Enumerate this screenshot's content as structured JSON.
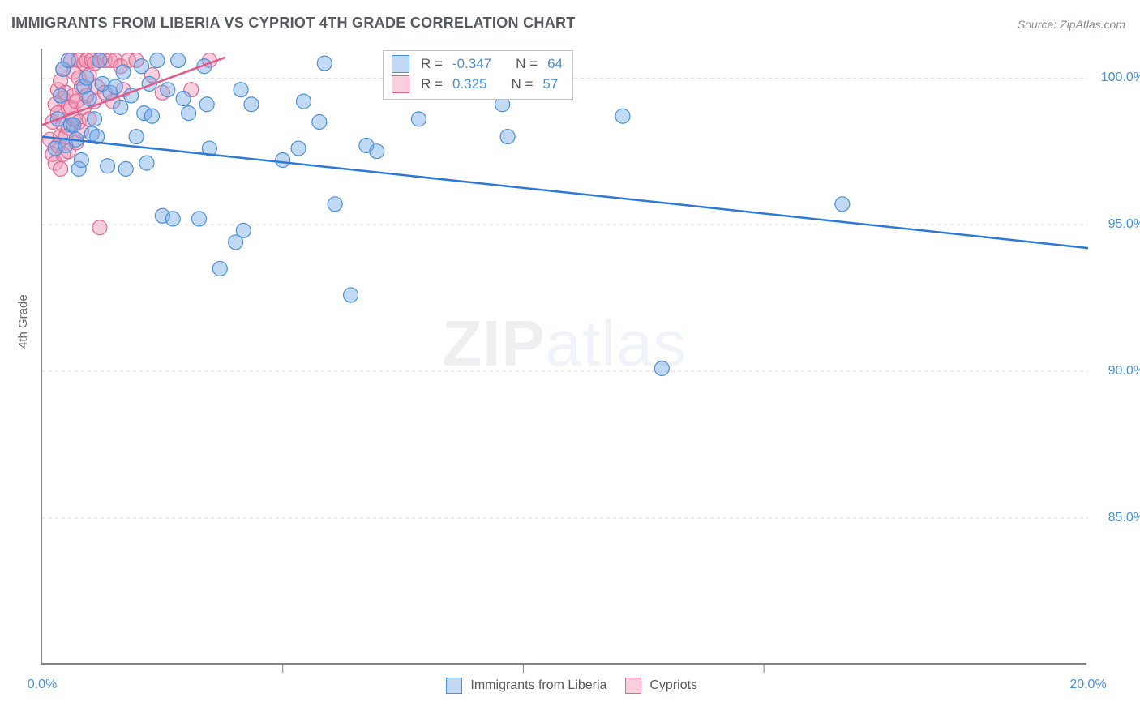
{
  "title": "IMMIGRANTS FROM LIBERIA VS CYPRIOT 4TH GRADE CORRELATION CHART",
  "source": "Source: ZipAtlas.com",
  "ylabel": "4th Grade",
  "watermark_left": "ZIP",
  "watermark_right": "atlas",
  "chart": {
    "type": "scatter",
    "xlim": [
      0,
      20
    ],
    "ylim": [
      80,
      101
    ],
    "yticks": [
      85,
      90,
      95,
      100
    ],
    "ytick_labels": [
      "85.0%",
      "90.0%",
      "95.0%",
      "100.0%"
    ],
    "xticks": [
      0,
      20
    ],
    "xtick_labels": [
      "0.0%",
      "20.0%"
    ],
    "xtick_minor": [
      4.6,
      9.2,
      13.8
    ],
    "grid_color": "#d8dbe0",
    "background_color": "#ffffff",
    "marker_radius": 9,
    "series": [
      {
        "name": "Immigrants from Liberia",
        "color_fill": "rgba(120,170,230,0.45)",
        "color_stroke": "#4a90d9",
        "R": -0.347,
        "N": 64,
        "trendline": {
          "x1": 0,
          "y1": 98.0,
          "x2": 20,
          "y2": 94.2
        },
        "points": [
          [
            0.25,
            97.6
          ],
          [
            0.3,
            98.6
          ],
          [
            0.35,
            99.4
          ],
          [
            0.4,
            100.3
          ],
          [
            0.45,
            97.7
          ],
          [
            0.5,
            100.6
          ],
          [
            0.55,
            98.4
          ],
          [
            0.6,
            98.4
          ],
          [
            0.65,
            97.9
          ],
          [
            0.7,
            96.9
          ],
          [
            0.75,
            97.2
          ],
          [
            0.8,
            99.7
          ],
          [
            0.85,
            100.0
          ],
          [
            0.9,
            99.3
          ],
          [
            0.95,
            98.1
          ],
          [
            1.0,
            98.6
          ],
          [
            1.05,
            98.0
          ],
          [
            1.1,
            100.6
          ],
          [
            1.15,
            99.8
          ],
          [
            1.25,
            97.0
          ],
          [
            1.3,
            99.5
          ],
          [
            1.4,
            99.7
          ],
          [
            1.5,
            99.0
          ],
          [
            1.55,
            100.2
          ],
          [
            1.6,
            96.9
          ],
          [
            1.7,
            99.4
          ],
          [
            1.8,
            98.0
          ],
          [
            1.9,
            100.4
          ],
          [
            1.95,
            98.8
          ],
          [
            2.0,
            97.1
          ],
          [
            2.05,
            99.8
          ],
          [
            2.1,
            98.7
          ],
          [
            2.2,
            100.6
          ],
          [
            2.3,
            95.3
          ],
          [
            2.4,
            99.6
          ],
          [
            2.5,
            95.2
          ],
          [
            2.6,
            100.6
          ],
          [
            2.7,
            99.3
          ],
          [
            2.8,
            98.8
          ],
          [
            3.0,
            95.2
          ],
          [
            3.1,
            100.4
          ],
          [
            3.15,
            99.1
          ],
          [
            3.2,
            97.6
          ],
          [
            3.4,
            93.5
          ],
          [
            3.7,
            94.4
          ],
          [
            3.8,
            99.6
          ],
          [
            3.85,
            94.8
          ],
          [
            4.0,
            99.1
          ],
          [
            4.6,
            97.2
          ],
          [
            4.9,
            97.6
          ],
          [
            5.0,
            99.2
          ],
          [
            5.3,
            98.5
          ],
          [
            5.4,
            100.5
          ],
          [
            5.6,
            95.7
          ],
          [
            5.9,
            92.6
          ],
          [
            6.2,
            97.7
          ],
          [
            6.4,
            97.5
          ],
          [
            7.2,
            98.6
          ],
          [
            7.55,
            100.6
          ],
          [
            8.8,
            99.1
          ],
          [
            8.9,
            98.0
          ],
          [
            11.1,
            98.7
          ],
          [
            11.85,
            90.1
          ],
          [
            15.3,
            95.7
          ]
        ]
      },
      {
        "name": "Cypriots",
        "color_fill": "rgba(240,150,180,0.45)",
        "color_stroke": "#e06692",
        "R": 0.325,
        "N": 57,
        "trendline": {
          "x1": 0,
          "y1": 98.4,
          "x2": 3.5,
          "y2": 100.7
        },
        "points": [
          [
            0.15,
            97.9
          ],
          [
            0.2,
            97.4
          ],
          [
            0.2,
            98.5
          ],
          [
            0.25,
            97.1
          ],
          [
            0.25,
            99.1
          ],
          [
            0.3,
            97.7
          ],
          [
            0.3,
            98.8
          ],
          [
            0.3,
            99.6
          ],
          [
            0.35,
            96.9
          ],
          [
            0.35,
            98.0
          ],
          [
            0.35,
            99.9
          ],
          [
            0.4,
            97.4
          ],
          [
            0.4,
            98.4
          ],
          [
            0.4,
            99.3
          ],
          [
            0.4,
            100.3
          ],
          [
            0.45,
            98.0
          ],
          [
            0.45,
            99.5
          ],
          [
            0.5,
            97.5
          ],
          [
            0.5,
            98.3
          ],
          [
            0.5,
            99.0
          ],
          [
            0.55,
            100.6
          ],
          [
            0.55,
            99.0
          ],
          [
            0.6,
            98.6
          ],
          [
            0.6,
            100.2
          ],
          [
            0.6,
            99.4
          ],
          [
            0.65,
            97.8
          ],
          [
            0.65,
            99.2
          ],
          [
            0.7,
            98.5
          ],
          [
            0.7,
            100.0
          ],
          [
            0.7,
            100.6
          ],
          [
            0.75,
            98.2
          ],
          [
            0.75,
            99.7
          ],
          [
            0.8,
            99.0
          ],
          [
            0.8,
            100.5
          ],
          [
            0.85,
            99.4
          ],
          [
            0.85,
            100.6
          ],
          [
            0.9,
            98.6
          ],
          [
            0.9,
            100.1
          ],
          [
            0.95,
            100.6
          ],
          [
            1.0,
            99.2
          ],
          [
            1.0,
            100.5
          ],
          [
            1.05,
            99.7
          ],
          [
            1.1,
            100.6
          ],
          [
            1.1,
            94.9
          ],
          [
            1.2,
            100.6
          ],
          [
            1.2,
            99.5
          ],
          [
            1.3,
            100.6
          ],
          [
            1.35,
            99.2
          ],
          [
            1.4,
            100.6
          ],
          [
            1.5,
            100.4
          ],
          [
            1.55,
            99.6
          ],
          [
            1.65,
            100.6
          ],
          [
            1.8,
            100.6
          ],
          [
            2.1,
            100.1
          ],
          [
            2.3,
            99.5
          ],
          [
            2.85,
            99.6
          ],
          [
            3.2,
            100.6
          ]
        ]
      }
    ]
  },
  "stats_box": {
    "rows": [
      {
        "swatch": "blue",
        "r_label": "R =",
        "r_val": "-0.347",
        "n_label": "N =",
        "n_val": "64"
      },
      {
        "swatch": "pink",
        "r_label": "R =",
        "r_val": " 0.325",
        "n_label": "N =",
        "n_val": "57"
      }
    ]
  },
  "bottom_legend": [
    {
      "swatch": "blue",
      "label": "Immigrants from Liberia"
    },
    {
      "swatch": "pink",
      "label": "Cypriots"
    }
  ]
}
